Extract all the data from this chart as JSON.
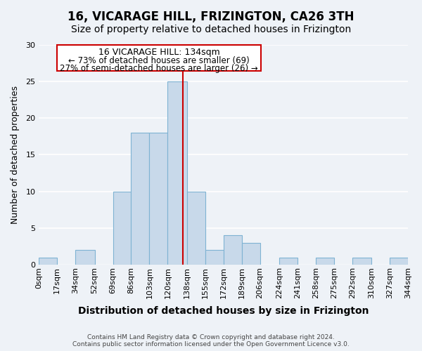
{
  "title": "16, VICARAGE HILL, FRIZINGTON, CA26 3TH",
  "subtitle": "Size of property relative to detached houses in Frizington",
  "xlabel": "Distribution of detached houses by size in Frizington",
  "ylabel": "Number of detached properties",
  "bin_edges": [
    0,
    17,
    34,
    52,
    69,
    86,
    103,
    120,
    138,
    155,
    172,
    189,
    206,
    224,
    241,
    258,
    275,
    292,
    310,
    327,
    344
  ],
  "bin_labels": [
    "0sqm",
    "17sqm",
    "34sqm",
    "52sqm",
    "69sqm",
    "86sqm",
    "103sqm",
    "120sqm",
    "138sqm",
    "155sqm",
    "172sqm",
    "189sqm",
    "206sqm",
    "224sqm",
    "241sqm",
    "258sqm",
    "275sqm",
    "292sqm",
    "310sqm",
    "327sqm",
    "344sqm"
  ],
  "counts": [
    1,
    0,
    2,
    0,
    10,
    18,
    18,
    25,
    10,
    2,
    4,
    3,
    0,
    1,
    0,
    1,
    0,
    1,
    0,
    1
  ],
  "bar_color": "#c8d9ea",
  "bar_edge_color": "#7fb3d3",
  "property_value": 134,
  "vline_color": "#cc0000",
  "annotation_title": "16 VICARAGE HILL: 134sqm",
  "annotation_line1": "← 73% of detached houses are smaller (69)",
  "annotation_line2": "27% of semi-detached houses are larger (26) →",
  "annotation_box_facecolor": "#ffffff",
  "annotation_box_edgecolor": "#cc0000",
  "ylim": [
    0,
    30
  ],
  "xlim": [
    0,
    344
  ],
  "yticks": [
    0,
    5,
    10,
    15,
    20,
    25,
    30
  ],
  "footer1": "Contains HM Land Registry data © Crown copyright and database right 2024.",
  "footer2": "Contains public sector information licensed under the Open Government Licence v3.0.",
  "background_color": "#eef2f7",
  "grid_color": "#ffffff",
  "title_fontsize": 12,
  "subtitle_fontsize": 10,
  "xlabel_fontsize": 10,
  "ylabel_fontsize": 9,
  "tick_fontsize": 8,
  "footer_fontsize": 6.5
}
